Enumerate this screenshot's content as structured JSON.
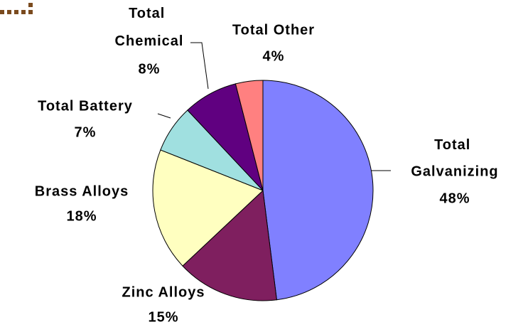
{
  "chart_data": {
    "type": "pie",
    "categories": [
      "Total Galvanizing",
      "Zinc Alloys",
      "Brass Alloys",
      "Total Battery",
      "Total Chemical",
      "Total Other"
    ],
    "values": [
      48,
      15,
      18,
      7,
      8,
      4
    ],
    "value_labels": [
      "48%",
      "15%",
      "18%",
      "7%",
      "8%",
      "4%"
    ],
    "colors": [
      "#8080ff",
      "#7f1f5f",
      "#ffffc0",
      "#a0e0e0",
      "#600080",
      "#ff8080"
    ]
  }
}
